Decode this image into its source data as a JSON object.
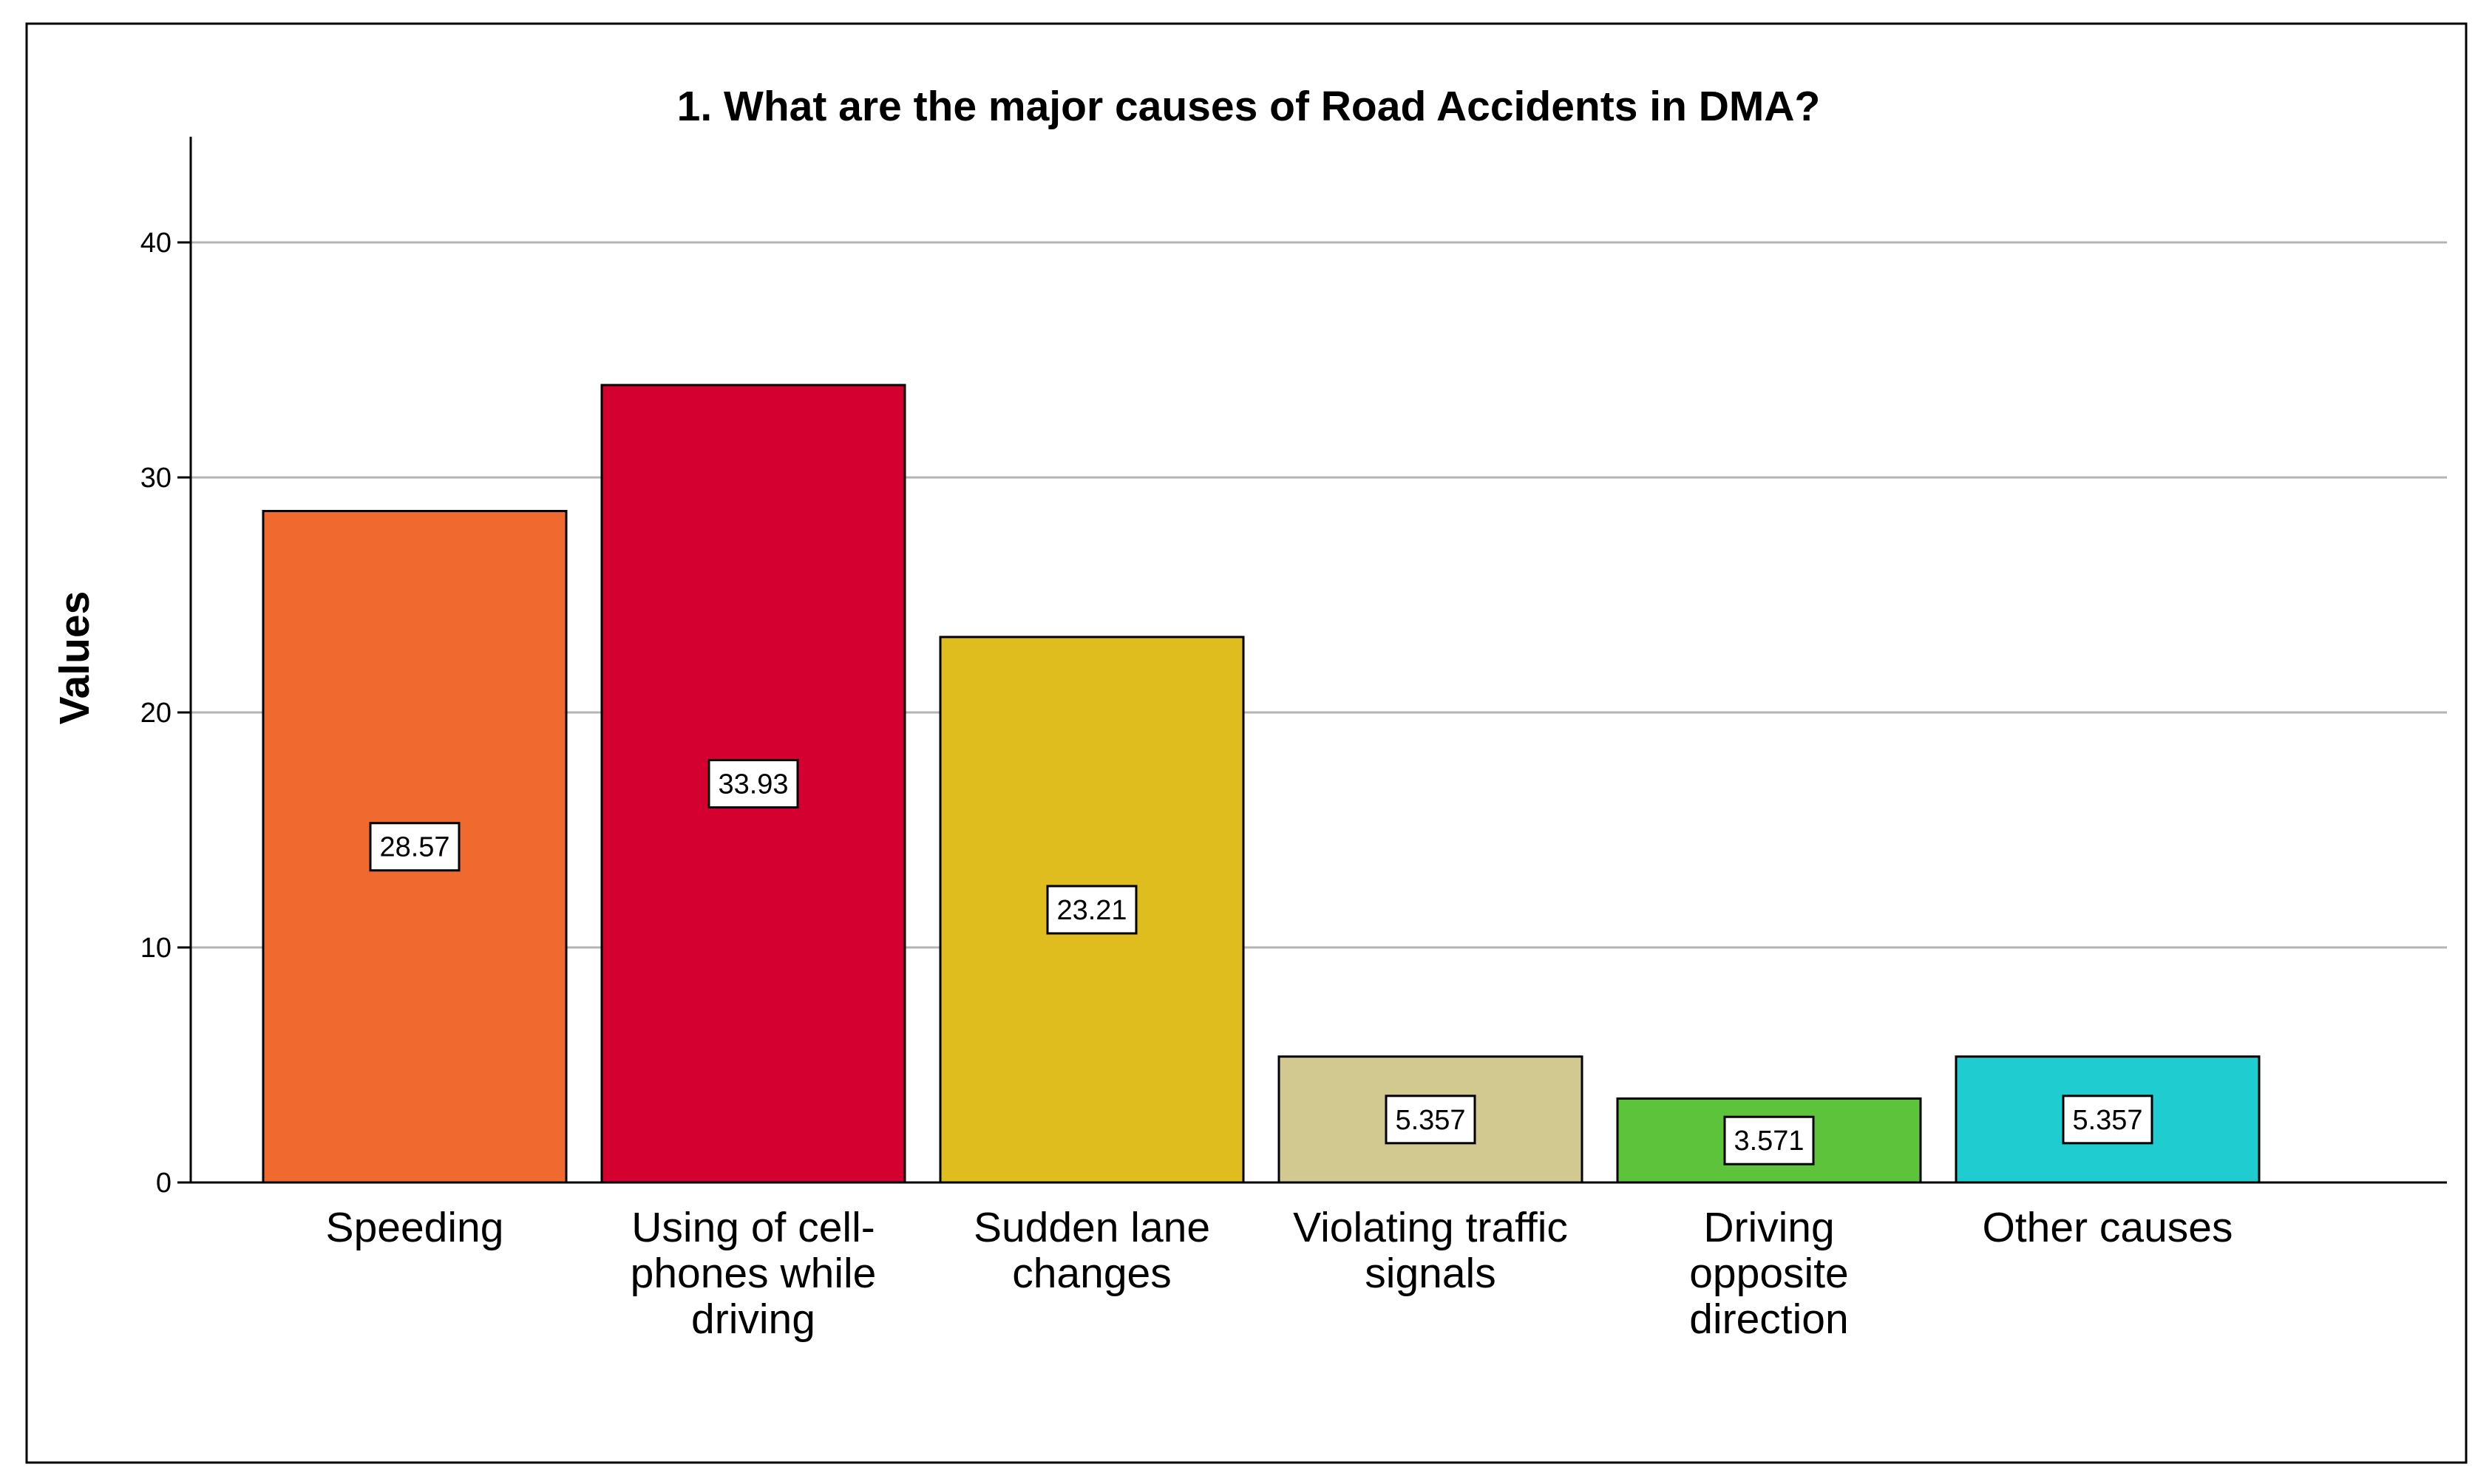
{
  "chart_data": {
    "type": "bar",
    "title": "1. What are the major causes of Road Accidents in DMA?",
    "xlabel": "",
    "ylabel": "Values",
    "ylim": [
      0,
      44
    ],
    "yticks": [
      0,
      10,
      20,
      30,
      40
    ],
    "grid": true,
    "legend": "none",
    "categories": [
      [
        "Speeding"
      ],
      [
        "Using of cell-",
        "phones while",
        "driving"
      ],
      [
        "Sudden lane",
        "changes"
      ],
      [
        "Violating traffic",
        "signals"
      ],
      [
        "Driving",
        "opposite",
        "direction"
      ],
      [
        "Other causes"
      ]
    ],
    "values": [
      28.57,
      33.93,
      23.21,
      5.357,
      3.571,
      5.357
    ],
    "data_labels": [
      "28.57",
      "33.93",
      "23.21",
      "5.357",
      "3.571",
      "5.357"
    ],
    "colors": [
      "#f06a2f",
      "#d4002f",
      "#e0bd1f",
      "#d2c990",
      "#5dc33b",
      "#1fcdd1"
    ]
  }
}
